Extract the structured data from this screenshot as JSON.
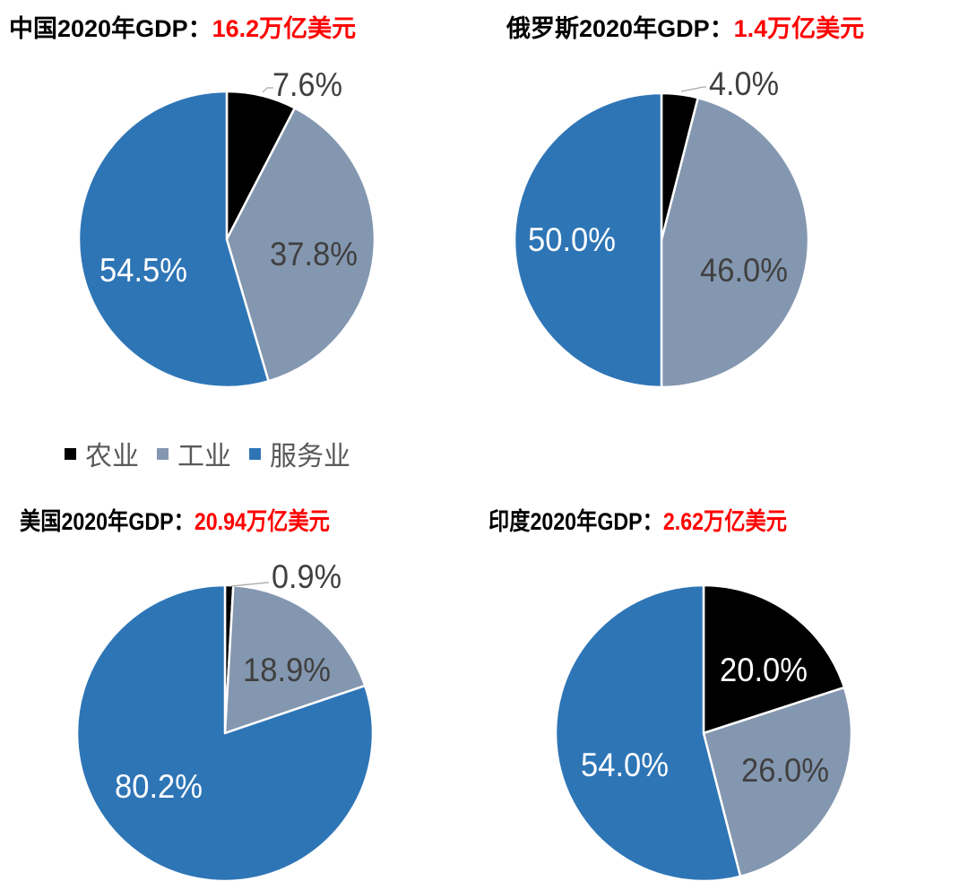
{
  "legend": {
    "items": [
      {
        "label": "农业",
        "color": "#000000"
      },
      {
        "label": "工业",
        "color": "#8497b0"
      },
      {
        "label": "服务业",
        "color": "#2e75b6"
      }
    ]
  },
  "titles": [
    {
      "prefix": "中国2020年GDP：",
      "value": "16.2万亿美元"
    },
    {
      "prefix": "俄罗斯2020年GDP：",
      "value": "1.4万亿美元"
    },
    {
      "prefix": "美国2020年GDP：",
      "value": "20.94万亿美元"
    },
    {
      "prefix": "印度2020年GDP：",
      "value": "2.62万亿美元"
    }
  ],
  "chart_data": [
    {
      "type": "pie",
      "title": "中国2020年GDP：16.2万亿美元",
      "categories": [
        "农业",
        "工业",
        "服务业"
      ],
      "values": [
        7.6,
        37.8,
        54.5
      ],
      "labels": [
        "7.6%",
        "37.8%",
        "54.5%"
      ],
      "colors": [
        "#000000",
        "#8497b0",
        "#2e75b6"
      ],
      "start_angle": "12 o'clock, clockwise",
      "legend_position": "below first row"
    },
    {
      "type": "pie",
      "title": "俄罗斯2020年GDP：1.4万亿美元",
      "categories": [
        "农业",
        "工业",
        "服务业"
      ],
      "values": [
        4.0,
        46.0,
        50.0
      ],
      "labels": [
        "4.0%",
        "46.0%",
        "50.0%"
      ],
      "colors": [
        "#000000",
        "#8497b0",
        "#2e75b6"
      ],
      "start_angle": "12 o'clock, clockwise"
    },
    {
      "type": "pie",
      "title": "美国2020年GDP：20.94万亿美元",
      "categories": [
        "农业",
        "工业",
        "服务业"
      ],
      "values": [
        0.9,
        18.9,
        80.2
      ],
      "labels": [
        "0.9%",
        "18.9%",
        "80.2%"
      ],
      "colors": [
        "#000000",
        "#8497b0",
        "#2e75b6"
      ],
      "start_angle": "12 o'clock, clockwise"
    },
    {
      "type": "pie",
      "title": "印度2020年GDP：2.62万亿美元",
      "categories": [
        "农业",
        "工业",
        "服务业"
      ],
      "values": [
        20.0,
        26.0,
        54.0
      ],
      "labels": [
        "20.0%",
        "26.0%",
        "54.0%"
      ],
      "colors": [
        "#000000",
        "#8497b0",
        "#2e75b6"
      ],
      "start_angle": "12 o'clock, clockwise"
    }
  ]
}
